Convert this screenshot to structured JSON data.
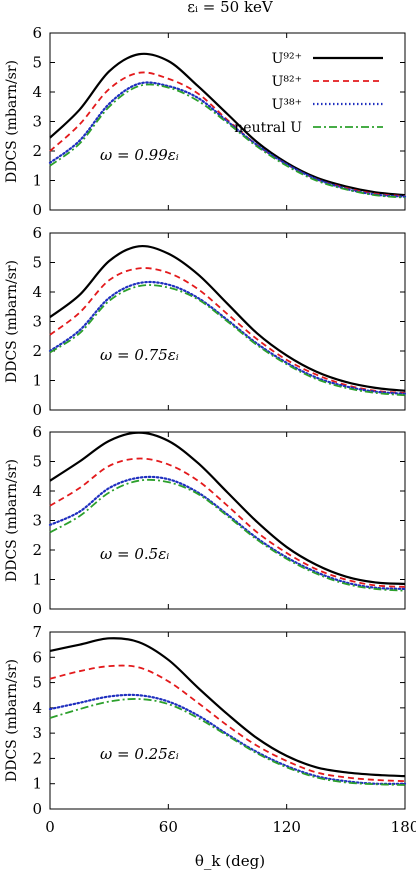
{
  "header": {
    "title": "εᵢ = 50 keV"
  },
  "legend": [
    {
      "label": "U⁹²⁺",
      "color": "#000000",
      "dash": "solid",
      "width": 2.2
    },
    {
      "label": "U⁸²⁺",
      "color": "#e31a1c",
      "dash": "6,4",
      "width": 1.8
    },
    {
      "label": "U³⁸⁺",
      "color": "#1f2fbf",
      "dash": "1.5,2.5",
      "width": 2.2
    },
    {
      "label": "neutral U",
      "color": "#2ca02c",
      "dash": "8,3,2,3",
      "width": 1.8
    }
  ],
  "x_axis": {
    "label": "θ_k (deg)",
    "ticks": [
      "0",
      "60",
      "120",
      "180"
    ]
  },
  "chart_data": [
    {
      "type": "line",
      "panel_label": "ω = 0.99εᵢ",
      "ylabel": "DDCS (mbarn/sr)",
      "xlim": [
        0,
        180
      ],
      "ylim": [
        0,
        6
      ],
      "yticks": [
        0,
        1,
        2,
        3,
        4,
        5,
        6
      ],
      "x": [
        0,
        15,
        30,
        45,
        60,
        75,
        90,
        105,
        120,
        135,
        150,
        165,
        180
      ],
      "series": [
        {
          "name": "U⁹²⁺",
          "values": [
            2.45,
            3.4,
            4.7,
            5.28,
            5.05,
            4.2,
            3.25,
            2.3,
            1.6,
            1.1,
            0.8,
            0.6,
            0.5
          ]
        },
        {
          "name": "U⁸²⁺",
          "values": [
            2.0,
            2.9,
            4.1,
            4.65,
            4.45,
            3.95,
            3.05,
            2.2,
            1.55,
            1.05,
            0.75,
            0.55,
            0.47
          ]
        },
        {
          "name": "U³⁸⁺",
          "values": [
            1.6,
            2.35,
            3.6,
            4.28,
            4.2,
            3.8,
            3.0,
            2.2,
            1.55,
            1.05,
            0.72,
            0.52,
            0.45
          ]
        },
        {
          "name": "neutral U",
          "values": [
            1.5,
            2.25,
            3.5,
            4.2,
            4.15,
            3.7,
            2.95,
            2.15,
            1.5,
            1.0,
            0.7,
            0.5,
            0.42
          ]
        }
      ]
    },
    {
      "type": "line",
      "panel_label": "ω = 0.75εᵢ",
      "ylabel": "DDCS (mbarn/sr)",
      "xlim": [
        0,
        180
      ],
      "ylim": [
        0,
        6
      ],
      "yticks": [
        0,
        1,
        2,
        3,
        4,
        5,
        6
      ],
      "x": [
        0,
        15,
        30,
        45,
        60,
        75,
        90,
        105,
        120,
        135,
        150,
        165,
        180
      ],
      "series": [
        {
          "name": "U⁹²⁺",
          "values": [
            3.15,
            3.9,
            5.05,
            5.55,
            5.3,
            4.6,
            3.6,
            2.6,
            1.85,
            1.3,
            0.95,
            0.75,
            0.65
          ]
        },
        {
          "name": "U⁸²⁺",
          "values": [
            2.55,
            3.3,
            4.4,
            4.8,
            4.65,
            4.1,
            3.25,
            2.4,
            1.7,
            1.2,
            0.85,
            0.65,
            0.58
          ]
        },
        {
          "name": "U³⁸⁺",
          "values": [
            2.0,
            2.7,
            3.8,
            4.3,
            4.25,
            3.8,
            3.05,
            2.25,
            1.6,
            1.1,
            0.8,
            0.62,
            0.55
          ]
        },
        {
          "name": "neutral U",
          "values": [
            1.95,
            2.6,
            3.7,
            4.2,
            4.15,
            3.75,
            3.0,
            2.2,
            1.55,
            1.05,
            0.75,
            0.58,
            0.5
          ]
        }
      ]
    },
    {
      "type": "line",
      "panel_label": "ω = 0.5εᵢ",
      "ylabel": "DDCS (mbarn/sr)",
      "xlim": [
        0,
        180
      ],
      "ylim": [
        0,
        6
      ],
      "yticks": [
        0,
        1,
        2,
        3,
        4,
        5,
        6
      ],
      "x": [
        0,
        15,
        30,
        45,
        60,
        75,
        90,
        105,
        120,
        135,
        150,
        165,
        180
      ],
      "series": [
        {
          "name": "U⁹²⁺",
          "values": [
            4.35,
            5.0,
            5.7,
            5.98,
            5.7,
            4.95,
            3.95,
            2.95,
            2.1,
            1.5,
            1.1,
            0.9,
            0.85
          ]
        },
        {
          "name": "U⁸²⁺",
          "values": [
            3.5,
            4.1,
            4.85,
            5.1,
            4.9,
            4.35,
            3.5,
            2.6,
            1.9,
            1.35,
            1.0,
            0.8,
            0.75
          ]
        },
        {
          "name": "U³⁸⁺",
          "values": [
            2.85,
            3.3,
            4.1,
            4.45,
            4.4,
            3.95,
            3.2,
            2.4,
            1.75,
            1.25,
            0.9,
            0.72,
            0.68
          ]
        },
        {
          "name": "neutral U",
          "values": [
            2.6,
            3.15,
            3.95,
            4.35,
            4.3,
            3.9,
            3.15,
            2.35,
            1.7,
            1.2,
            0.85,
            0.68,
            0.62
          ]
        }
      ]
    },
    {
      "type": "line",
      "panel_label": "ω = 0.25εᵢ",
      "ylabel": "DDCS (mbarn/sr)",
      "xlim": [
        0,
        180
      ],
      "ylim": [
        0,
        7
      ],
      "yticks": [
        0,
        1,
        2,
        3,
        4,
        5,
        6,
        7
      ],
      "x": [
        0,
        15,
        30,
        45,
        60,
        75,
        90,
        105,
        120,
        135,
        150,
        165,
        180
      ],
      "series": [
        {
          "name": "U⁹²⁺",
          "values": [
            6.25,
            6.5,
            6.75,
            6.6,
            5.9,
            4.8,
            3.75,
            2.8,
            2.1,
            1.65,
            1.45,
            1.35,
            1.3
          ]
        },
        {
          "name": "U⁸²⁺",
          "values": [
            5.15,
            5.45,
            5.65,
            5.6,
            5.05,
            4.2,
            3.3,
            2.5,
            1.9,
            1.45,
            1.25,
            1.15,
            1.1
          ]
        },
        {
          "name": "U³⁸⁺",
          "values": [
            3.95,
            4.2,
            4.45,
            4.5,
            4.25,
            3.7,
            2.95,
            2.25,
            1.7,
            1.3,
            1.1,
            1.0,
            1.0
          ]
        },
        {
          "name": "neutral U",
          "values": [
            3.6,
            3.95,
            4.25,
            4.35,
            4.15,
            3.6,
            2.9,
            2.2,
            1.65,
            1.25,
            1.05,
            0.98,
            0.95
          ]
        }
      ]
    }
  ]
}
